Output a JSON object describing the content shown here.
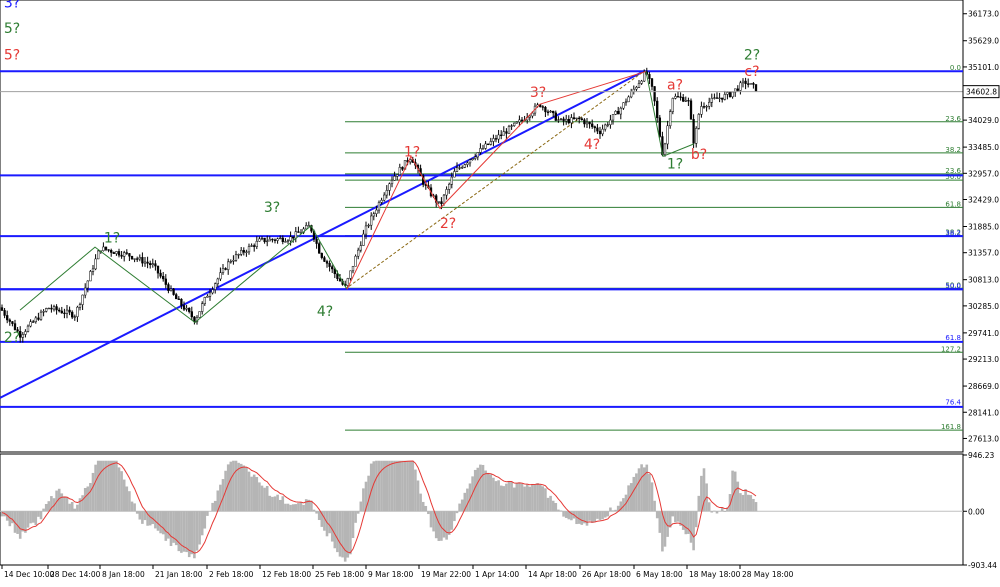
{
  "chart_data": {
    "type": "candlestick-elliott-wave",
    "symbol_price_label": "34602.8",
    "main": {
      "yrange": [
        27340,
        36450
      ],
      "y_ticks": [
        "36173.0",
        "35629.0",
        "35101.0",
        "34573.0",
        "34029.0",
        "33485.0",
        "32957.0",
        "32429.0",
        "31885.0",
        "31357.0",
        "30813.0",
        "30285.0",
        "29741.0",
        "29213.0",
        "28669.0",
        "28141.0",
        "27613.0"
      ],
      "y_tick_values": [
        36173,
        35629,
        35101,
        34573,
        34029,
        33485,
        32957,
        32429,
        31885,
        31357,
        30813,
        30285,
        29741,
        29213,
        28669,
        28141,
        27613
      ],
      "current_price": 34602.8,
      "blue_hlines": [
        35015,
        32915,
        31690,
        30620,
        29560,
        28250
      ],
      "fib_levels": [
        {
          "label": "0.0",
          "value": 35015,
          "color": "#2e7d32"
        },
        {
          "label": "23.6",
          "value": 33995,
          "color": "#2e7d32"
        },
        {
          "label": "38.2",
          "value": 33370,
          "color": "#2e7d32"
        },
        {
          "label": "23.6",
          "value": 32945,
          "color": "#2e7d32"
        },
        {
          "label": "50.0",
          "value": 32820,
          "color": "#2e7d32"
        },
        {
          "label": "61.8",
          "value": 32270,
          "color": "#2e7d32"
        },
        {
          "label": "38.2",
          "value": 31700,
          "color": "#2e7d32"
        },
        {
          "label": "38.2",
          "value": 31680,
          "color": "#1a1aff"
        },
        {
          "label": "50.0",
          "value": 30640,
          "color": "#2e7d32"
        },
        {
          "label": "50.0",
          "value": 30620,
          "color": "#1a1aff"
        },
        {
          "label": "61.8",
          "value": 29580,
          "color": "#1a1aff"
        },
        {
          "label": "127.2",
          "value": 29350,
          "color": "#2e7d32"
        },
        {
          "label": "76.4",
          "value": 28280,
          "color": "#1a1aff"
        },
        {
          "label": "161.8",
          "value": 27780,
          "color": "#2e7d32"
        }
      ],
      "wave_labels": [
        {
          "text": "3?",
          "color": "#1a1aff",
          "x": "06 May 18:00",
          "y": 36300
        },
        {
          "text": "5?",
          "color": "#2e7d32",
          "x": "06 May 18:00",
          "y": 35780
        },
        {
          "text": "5?",
          "color": "#e53935",
          "x": "06 May 18:00",
          "y": 35250
        },
        {
          "text": "2?",
          "color": "#2e7d32",
          "x": "28 May 18:00",
          "y": 35250
        },
        {
          "text": "c?",
          "color": "#e53935",
          "x": "28 May 18:00",
          "y": 34920
        },
        {
          "text": "a?",
          "color": "#e53935",
          "x": "12 May 18:00",
          "y": 34650
        },
        {
          "text": "3?",
          "color": "#e53935",
          "x": "14 Apr 18:00",
          "y": 34500
        },
        {
          "text": "4?",
          "color": "#e53935",
          "x": "26 Apr 18:00",
          "y": 33450
        },
        {
          "text": "b?",
          "color": "#e53935",
          "x": "18 May 18:00",
          "y": 33250
        },
        {
          "text": "1?",
          "color": "#2e7d32",
          "x": "12 May 18:00",
          "y": 33050
        },
        {
          "text": "1?",
          "color": "#e53935",
          "x": "16 Mar 18:00",
          "y": 33300
        },
        {
          "text": "2?",
          "color": "#e53935",
          "x": "22 Mar 18:00",
          "y": 31850
        },
        {
          "text": "3?",
          "color": "#2e7d32",
          "x": "12 Feb 18:00",
          "y": 32180
        },
        {
          "text": "1?",
          "color": "#2e7d32",
          "x": "8 Jan 18:00",
          "y": 31560
        },
        {
          "text": "2?",
          "color": "#2e7d32",
          "x": "28 Jan 18:00",
          "y": 29560
        },
        {
          "text": "4?",
          "color": "#2e7d32",
          "x": "25 Feb 18:00",
          "y": 30080
        }
      ]
    },
    "indicator": {
      "yrange": [
        -903.44,
        946.23
      ],
      "y_ticks": [
        "946.23",
        "0.00",
        "-903.44"
      ],
      "y_tick_values": [
        946.23,
        0,
        -903.44
      ]
    },
    "x_ticks": [
      "14 Dec 10:00",
      "28 Dec 14:00",
      "8 Jan 18:00",
      "21 Jan 18:00",
      "2 Feb 18:00",
      "12 Feb 18:00",
      "25 Feb 18:00",
      "9 Mar 18:00",
      "19 Mar 22:00",
      "1 Apr 14:00",
      "14 Apr 18:00",
      "26 Apr 18:00",
      "6 May 18:00",
      "18 May 18:00",
      "28 May 18:00"
    ]
  }
}
